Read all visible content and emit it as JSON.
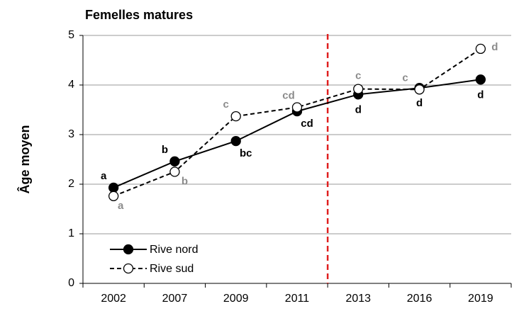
{
  "chart_data": {
    "type": "line",
    "title": "Femelles matures",
    "y_label": "Âge moyen",
    "categories": [
      "2002",
      "2007",
      "2009",
      "2011",
      "2013",
      "2016",
      "2019"
    ],
    "series": [
      {
        "name": "Rive nord",
        "color": "#000000",
        "marker": "filled",
        "dash": "solid",
        "values": [
          1.93,
          2.46,
          2.87,
          3.47,
          3.81,
          3.94,
          4.11
        ],
        "annotations": [
          "a",
          "b",
          "bc",
          "cd",
          "d",
          "d",
          "d"
        ],
        "annotation_color": "#000000"
      },
      {
        "name": "Rive sud",
        "color": "#000000",
        "marker": "open",
        "dash": "dashed",
        "values": [
          1.76,
          2.25,
          3.37,
          3.55,
          3.92,
          3.91,
          4.73
        ],
        "annotations": [
          "a",
          "b",
          "c",
          "cd",
          "c",
          "c",
          "d"
        ],
        "annotation_color": "#8c8c8c"
      }
    ],
    "ylim": [
      0,
      5
    ],
    "yticks": [
      0,
      1,
      2,
      3,
      4,
      5
    ],
    "grid": true,
    "legend": "lower left",
    "reference_line": {
      "between": [
        "2011",
        "2013"
      ],
      "color": "#e02020",
      "dash": "dashed"
    }
  }
}
